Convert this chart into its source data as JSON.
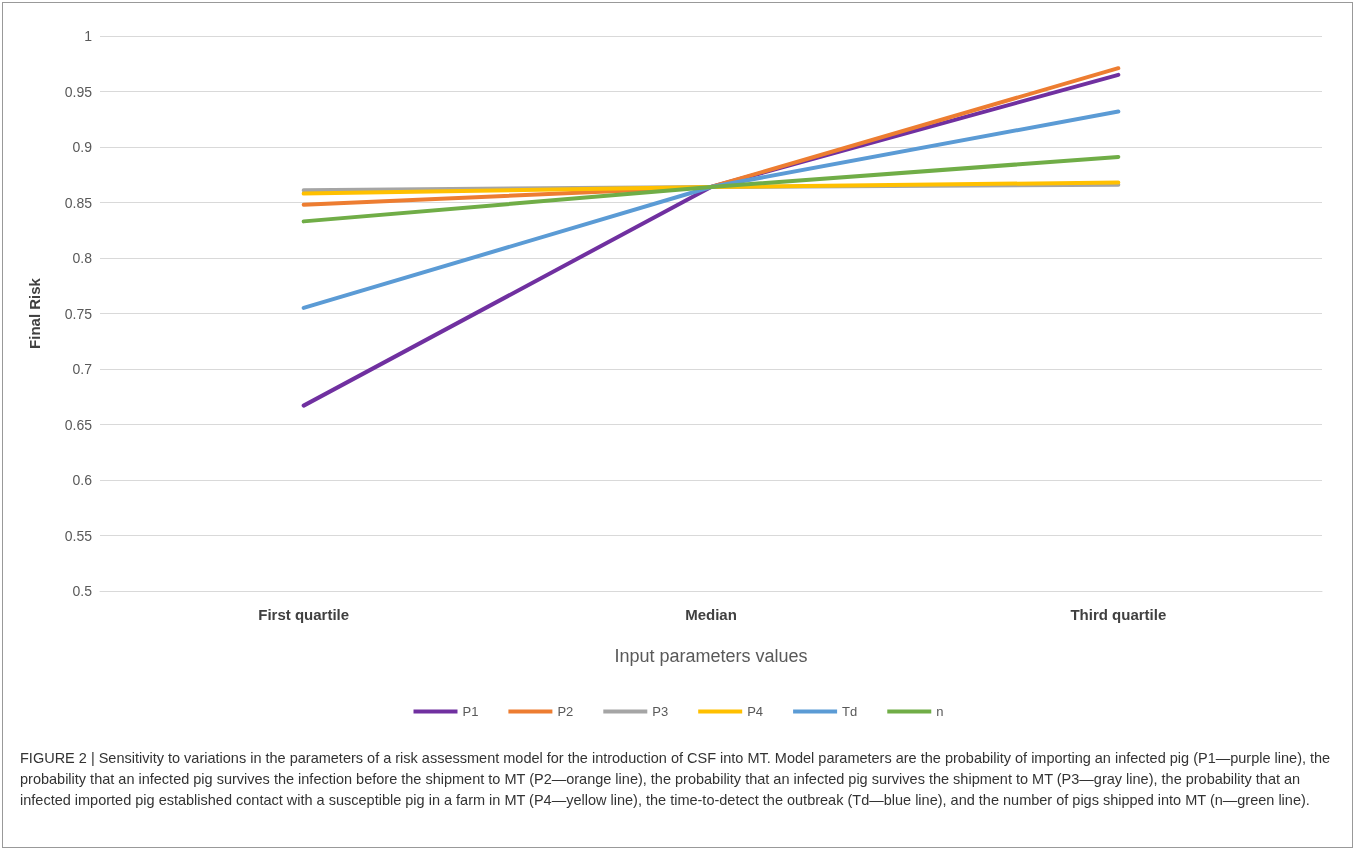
{
  "chart_data": {
    "type": "line",
    "xlabel": "Input parameters values",
    "ylabel": "Final Risk",
    "categories": [
      "First quartile",
      "Median",
      "Third quartile"
    ],
    "series": [
      {
        "name": "P1",
        "color": "#7030a0",
        "values": [
          0.667,
          0.864,
          0.965
        ]
      },
      {
        "name": "P2",
        "color": "#ed7d31",
        "values": [
          0.848,
          0.864,
          0.971
        ]
      },
      {
        "name": "P3",
        "color": "#a5a5a5",
        "values": [
          0.861,
          0.864,
          0.866
        ]
      },
      {
        "name": "P4",
        "color": "#ffc000",
        "values": [
          0.858,
          0.864,
          0.868
        ]
      },
      {
        "name": "Td",
        "color": "#5b9bd5",
        "values": [
          0.755,
          0.864,
          0.932
        ]
      },
      {
        "name": "n",
        "color": "#70ad47",
        "values": [
          0.833,
          0.864,
          0.891
        ]
      }
    ],
    "ylim": [
      0.5,
      1
    ],
    "yticks": [
      0.5,
      0.55,
      0.6,
      0.65,
      0.7,
      0.75,
      0.8,
      0.85,
      0.9,
      0.95,
      1
    ],
    "grid": "y",
    "legend": "bottom",
    "marker": "none",
    "line_style": "solid",
    "annotations": [
      "FIGURE 2 | Sensitivity to variations in the parameters of a risk assessment model for the introduction of CSF into MT. Model parameters are the probability of importing an infected pig (P1—purple line), the probability that an infected pig survives the infection before the shipment to MT (P2—orange line), the probability that an infected pig survives the shipment to MT (P3—gray line), the probability that an infected imported pig established contact with a susceptible pig in a farm in MT (P4—yellow line), the time-to-detect the outbreak (Td—blue line), and the number of pigs shipped into MT (n—green line)."
    ]
  }
}
